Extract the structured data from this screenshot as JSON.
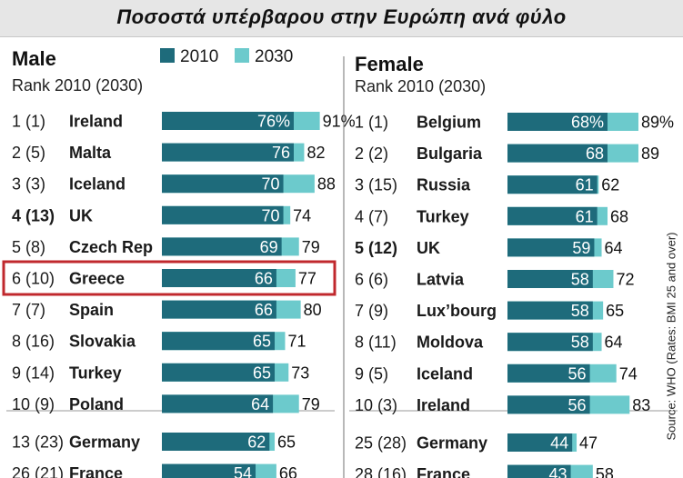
{
  "title": "Ποσοστά υπέρβαρου στην Ευρώπη ανά φύλο",
  "legend": {
    "series_2010": "2010",
    "series_2030": "2030"
  },
  "source": "Source: WHO   (Rates: BMI 25 and over)",
  "colors": {
    "series_2010": "#1e6b7b",
    "series_2030": "#6ccacc",
    "highlight": "#c0282d"
  },
  "chart_data": [
    {
      "type": "bar",
      "panel": "Male",
      "title": "Male",
      "subtitle": "Rank 2010 (2030)",
      "xlim": [
        0,
        100
      ],
      "rows": [
        {
          "rank": "1 (1)",
          "country": "Ireland",
          "v2010": 76,
          "v2030": 91,
          "label2010": "76%",
          "label2030": "91%",
          "bold": false,
          "highlight": false
        },
        {
          "rank": "2 (5)",
          "country": "Malta",
          "v2010": 76,
          "v2030": 82,
          "label2010": "76",
          "label2030": "82",
          "bold": false,
          "highlight": false
        },
        {
          "rank": "3 (3)",
          "country": "Iceland",
          "v2010": 70,
          "v2030": 88,
          "label2010": "70",
          "label2030": "88",
          "bold": false,
          "highlight": false
        },
        {
          "rank": "4 (13)",
          "country": "UK",
          "v2010": 70,
          "v2030": 74,
          "label2010": "70",
          "label2030": "74",
          "bold": true,
          "highlight": false
        },
        {
          "rank": "5 (8)",
          "country": "Czech Rep",
          "v2010": 69,
          "v2030": 79,
          "label2010": "69",
          "label2030": "79",
          "bold": false,
          "highlight": false
        },
        {
          "rank": "6 (10)",
          "country": "Greece",
          "v2010": 66,
          "v2030": 77,
          "label2010": "66",
          "label2030": "77",
          "bold": false,
          "highlight": true
        },
        {
          "rank": "7 (7)",
          "country": "Spain",
          "v2010": 66,
          "v2030": 80,
          "label2010": "66",
          "label2030": "80",
          "bold": false,
          "highlight": false
        },
        {
          "rank": "8 (16)",
          "country": "Slovakia",
          "v2010": 65,
          "v2030": 71,
          "label2010": "65",
          "label2030": "71",
          "bold": false,
          "highlight": false
        },
        {
          "rank": "9 (14)",
          "country": "Turkey",
          "v2010": 65,
          "v2030": 73,
          "label2010": "65",
          "label2030": "73",
          "bold": false,
          "highlight": false
        },
        {
          "rank": "10 (9)",
          "country": "Poland",
          "v2010": 64,
          "v2030": 79,
          "label2010": "64",
          "label2030": "79",
          "bold": false,
          "highlight": false
        },
        {
          "rank": "13 (23)",
          "country": "Germany",
          "v2010": 62,
          "v2030": 65,
          "label2010": "62",
          "label2030": "65",
          "bold": false,
          "highlight": false
        },
        {
          "rank": "26 (21)",
          "country": "France",
          "v2010": 54,
          "v2030": 66,
          "label2010": "54",
          "label2030": "66",
          "bold": false,
          "highlight": false
        }
      ]
    },
    {
      "type": "bar",
      "panel": "Female",
      "title": "Female",
      "subtitle": "Rank 2010 (2030)",
      "xlim": [
        0,
        100
      ],
      "rows": [
        {
          "rank": "1 (1)",
          "country": "Belgium",
          "v2010": 68,
          "v2030": 89,
          "label2010": "68%",
          "label2030": "89%",
          "bold": false,
          "highlight": false
        },
        {
          "rank": "2 (2)",
          "country": "Bulgaria",
          "v2010": 68,
          "v2030": 89,
          "label2010": "68",
          "label2030": "89",
          "bold": false,
          "highlight": false
        },
        {
          "rank": "3 (15)",
          "country": "Russia",
          "v2010": 61,
          "v2030": 62,
          "label2010": "61",
          "label2030": "62",
          "bold": false,
          "highlight": false
        },
        {
          "rank": "4 (7)",
          "country": "Turkey",
          "v2010": 61,
          "v2030": 68,
          "label2010": "61",
          "label2030": "68",
          "bold": false,
          "highlight": false
        },
        {
          "rank": "5 (12)",
          "country": "UK",
          "v2010": 59,
          "v2030": 64,
          "label2010": "59",
          "label2030": "64",
          "bold": true,
          "highlight": false
        },
        {
          "rank": "6 (6)",
          "country": "Latvia",
          "v2010": 58,
          "v2030": 72,
          "label2010": "58",
          "label2030": "72",
          "bold": false,
          "highlight": false
        },
        {
          "rank": "7 (9)",
          "country": "Lux’bourg",
          "v2010": 58,
          "v2030": 65,
          "label2010": "58",
          "label2030": "65",
          "bold": false,
          "highlight": false
        },
        {
          "rank": "8 (11)",
          "country": "Moldova",
          "v2010": 58,
          "v2030": 64,
          "label2010": "58",
          "label2030": "64",
          "bold": false,
          "highlight": false
        },
        {
          "rank": "9 (5)",
          "country": "Iceland",
          "v2010": 56,
          "v2030": 74,
          "label2010": "56",
          "label2030": "74",
          "bold": false,
          "highlight": false
        },
        {
          "rank": "10 (3)",
          "country": "Ireland",
          "v2010": 56,
          "v2030": 83,
          "label2010": "56",
          "label2030": "83",
          "bold": false,
          "highlight": false
        },
        {
          "rank": "25 (28)",
          "country": "Germany",
          "v2010": 44,
          "v2030": 47,
          "label2010": "44",
          "label2030": "47",
          "bold": false,
          "highlight": false
        },
        {
          "rank": "28 (16)",
          "country": "France",
          "v2010": 43,
          "v2030": 58,
          "label2010": "43",
          "label2030": "58",
          "bold": false,
          "highlight": false
        }
      ]
    }
  ]
}
